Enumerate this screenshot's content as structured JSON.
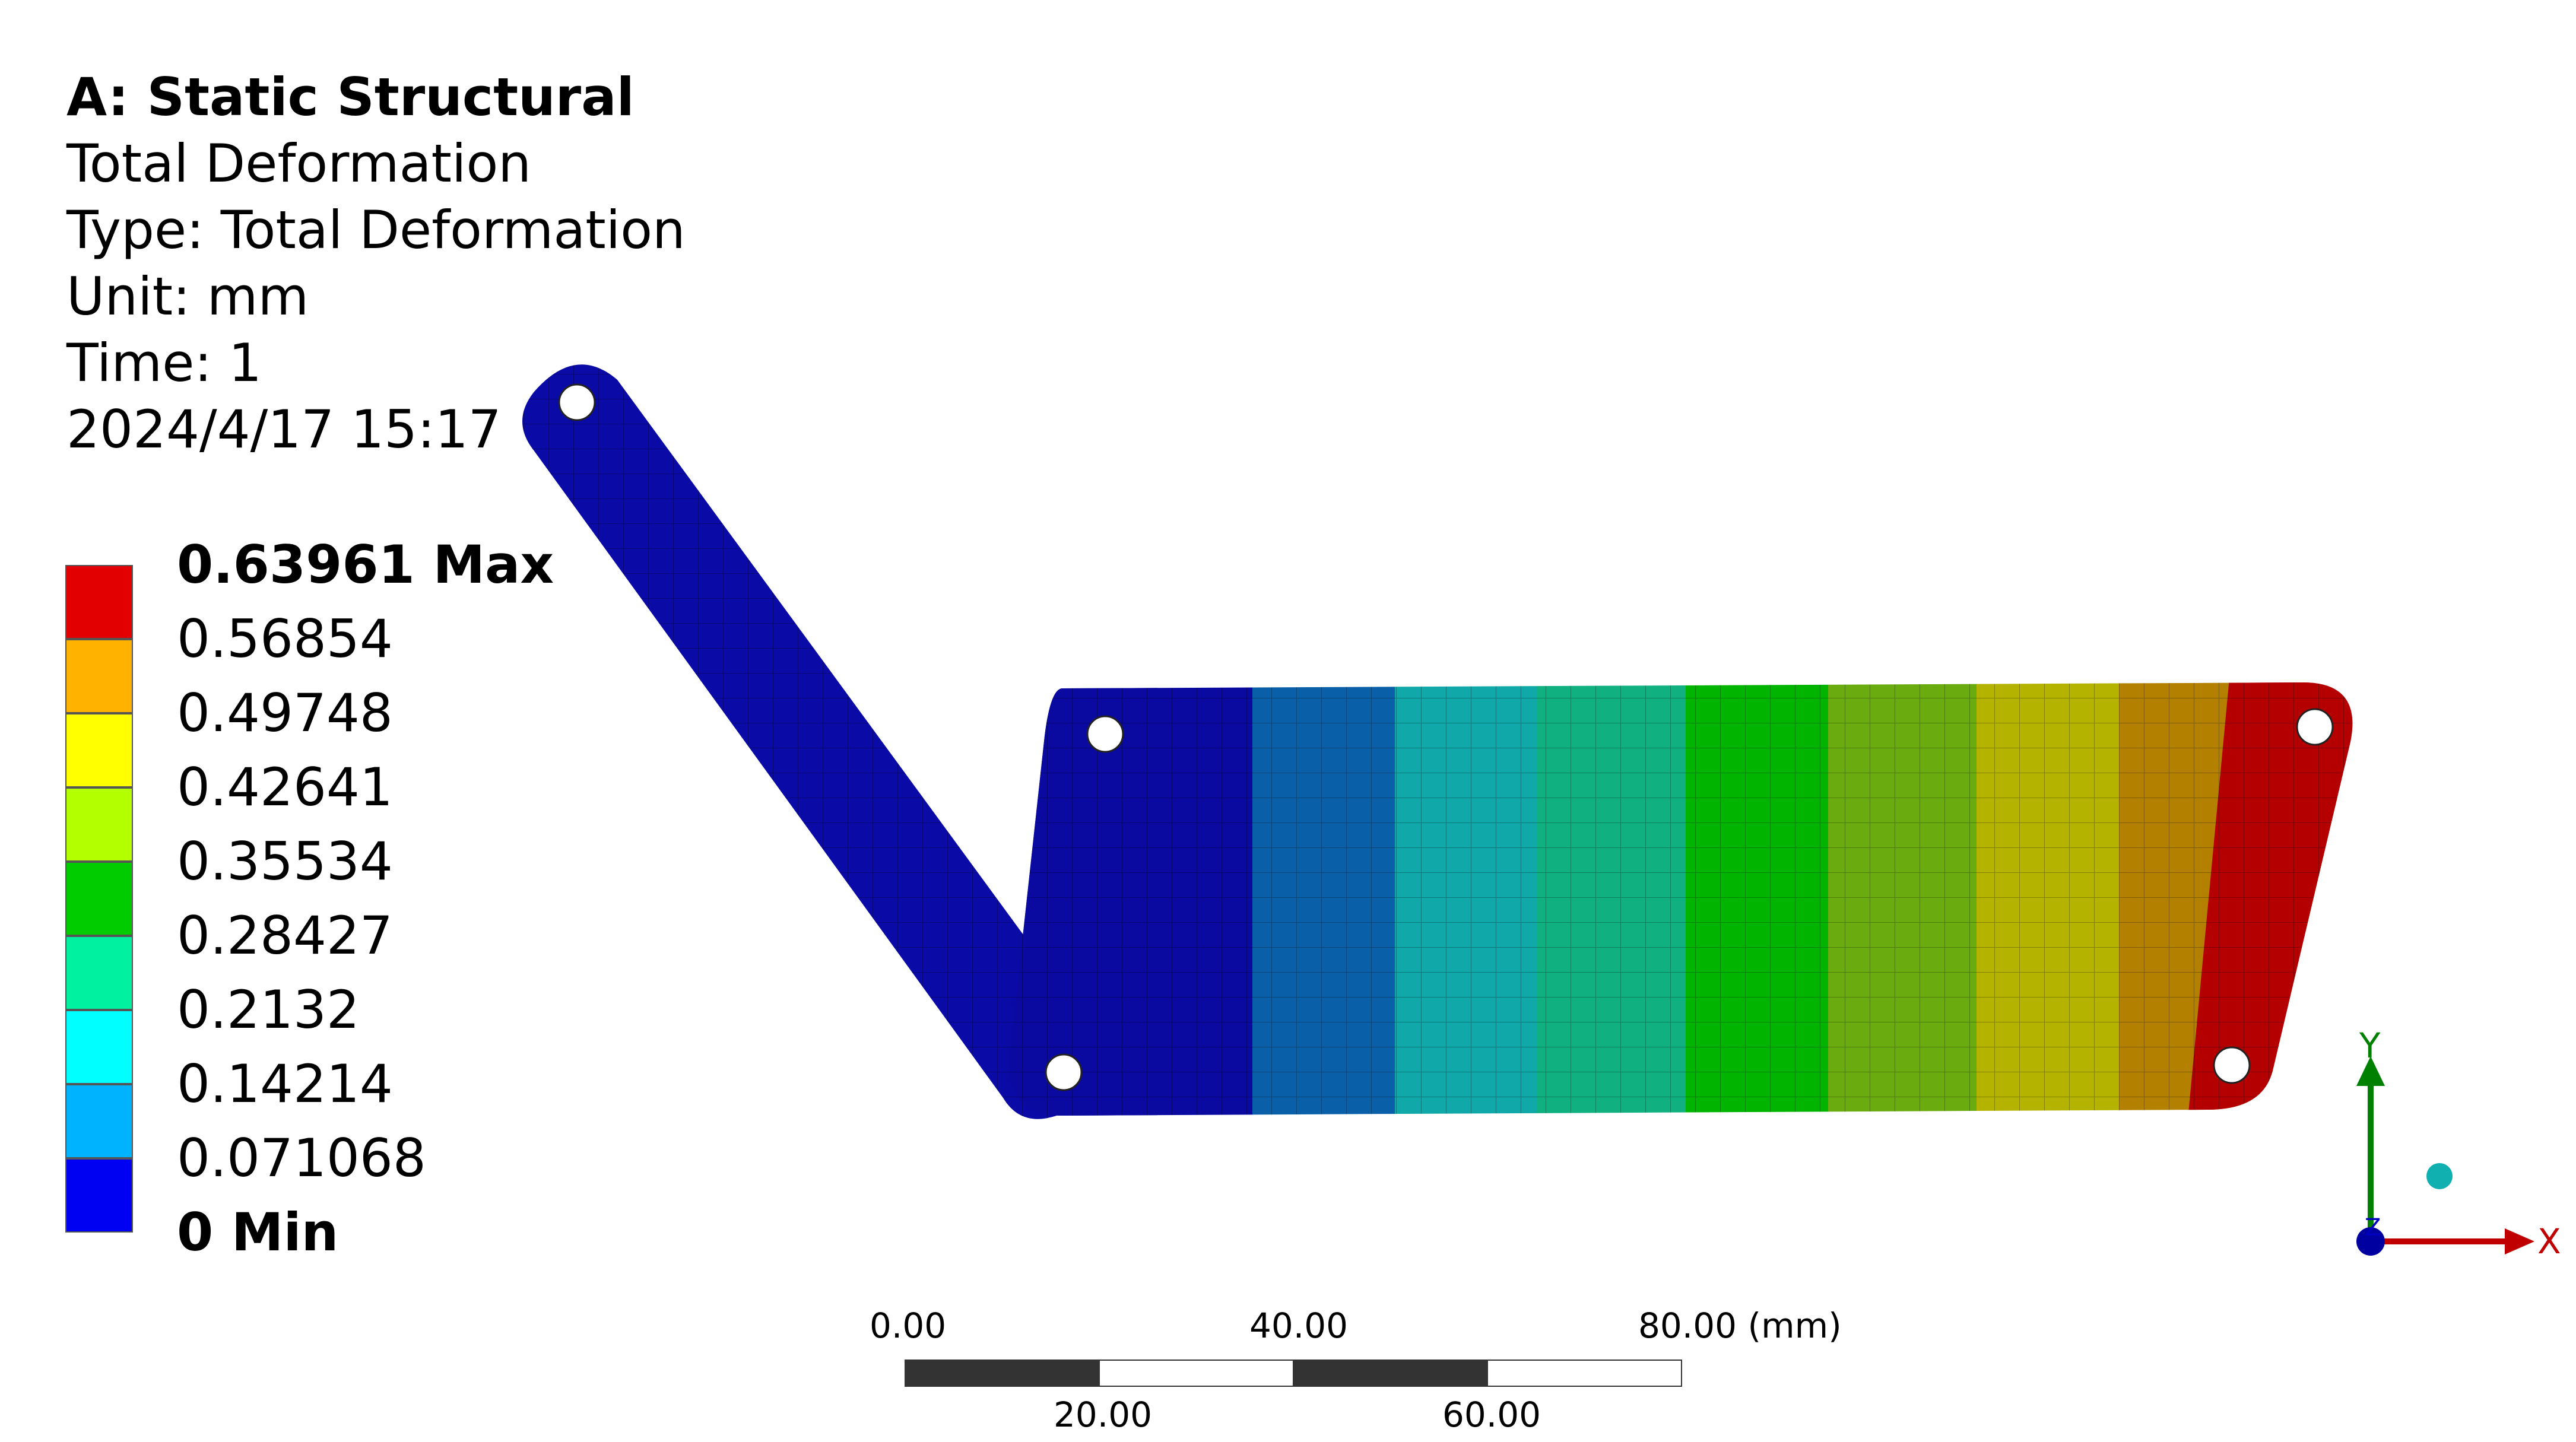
{
  "info": {
    "title": "A: Static Structural",
    "result": "Total Deformation",
    "type": "Type: Total Deformation",
    "unit": "Unit: mm",
    "time": "Time: 1",
    "timestamp": "2024/4/17 15:17"
  },
  "legend": {
    "colors": [
      "#e20000",
      "#ffb300",
      "#ffff00",
      "#b3ff00",
      "#00cc00",
      "#00f2a0",
      "#00ffff",
      "#00b3ff",
      "#0000f2"
    ],
    "labels": [
      {
        "text": "0.63961 Max",
        "bold": true
      },
      {
        "text": "0.56854",
        "bold": false
      },
      {
        "text": "0.49748",
        "bold": false
      },
      {
        "text": "0.42641",
        "bold": false
      },
      {
        "text": "0.35534",
        "bold": false
      },
      {
        "text": "0.28427",
        "bold": false
      },
      {
        "text": "0.2132",
        "bold": false
      },
      {
        "text": "0.14214",
        "bold": false
      },
      {
        "text": "0.071068",
        "bold": false
      },
      {
        "text": "0 Min",
        "bold": true
      }
    ]
  },
  "scale": {
    "top_labels": [
      "0.00",
      "40.00",
      "80.00 (mm)"
    ],
    "bottom_labels": [
      "20.00",
      "60.00"
    ]
  },
  "triad": {
    "x_label": "X",
    "y_label": "Y",
    "z_label": "Z",
    "x_color": "#c00000",
    "y_color": "#008000",
    "z_color": "#0000c0"
  },
  "contour": {
    "top_bar_colors": [
      "#0a0aa0",
      "#0a60a8",
      "#10a8a8",
      "#10b080",
      "#00b400",
      "#6aac10",
      "#b4b400",
      "#b48000",
      "#b40000"
    ],
    "bottom_bar_colors": [
      "#0a0aa0",
      "#0a60a8",
      "#10a8a8",
      "#10b080",
      "#00b400",
      "#6aac10",
      "#b4b400",
      "#b48000",
      "#b40000"
    ]
  }
}
